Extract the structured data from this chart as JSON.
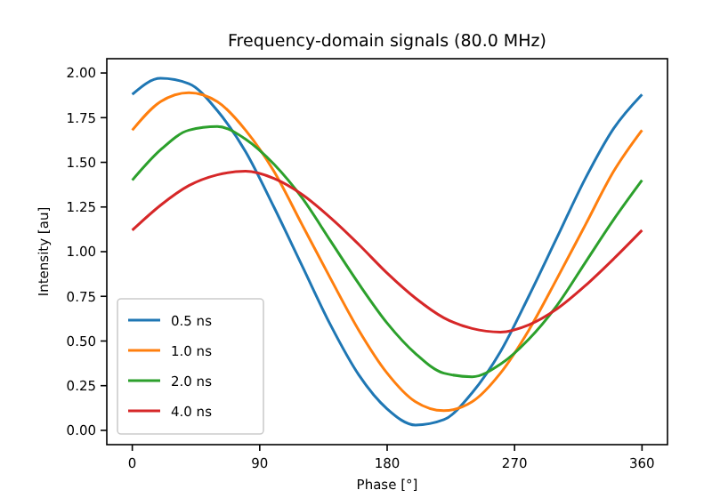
{
  "chart_data": {
    "type": "line",
    "title": "Frequency-domain signals (80.0 MHz)",
    "xlabel": "Phase [°]",
    "ylabel": "Intensity [au]",
    "x": [
      0,
      20,
      40,
      60,
      80,
      100,
      120,
      140,
      160,
      180,
      200,
      220,
      240,
      260,
      280,
      300,
      320,
      340,
      360
    ],
    "series": [
      {
        "name": "0.5 ns",
        "color": "#1f77b4",
        "values": [
          1.88,
          1.97,
          1.94,
          1.79,
          1.56,
          1.25,
          0.92,
          0.59,
          0.31,
          0.12,
          0.03,
          0.06,
          0.21,
          0.44,
          0.75,
          1.08,
          1.41,
          1.69,
          1.88
        ]
      },
      {
        "name": "1.0 ns",
        "color": "#ff7f0e",
        "values": [
          1.68,
          1.84,
          1.89,
          1.84,
          1.68,
          1.45,
          1.15,
          0.85,
          0.56,
          0.32,
          0.16,
          0.11,
          0.16,
          0.32,
          0.56,
          0.85,
          1.15,
          1.45,
          1.68
        ]
      },
      {
        "name": "2.0 ns",
        "color": "#2ca02c",
        "values": [
          1.4,
          1.57,
          1.68,
          1.7,
          1.63,
          1.49,
          1.3,
          1.06,
          0.82,
          0.6,
          0.43,
          0.32,
          0.3,
          0.37,
          0.51,
          0.7,
          0.94,
          1.18,
          1.4
        ]
      },
      {
        "name": "4.0 ns",
        "color": "#d62728",
        "values": [
          1.12,
          1.26,
          1.37,
          1.43,
          1.45,
          1.41,
          1.32,
          1.19,
          1.04,
          0.88,
          0.74,
          0.63,
          0.57,
          0.55,
          0.59,
          0.68,
          0.81,
          0.96,
          1.12
        ]
      }
    ],
    "xlim": [
      -18,
      378
    ],
    "xticks": [
      0,
      90,
      180,
      270,
      360
    ],
    "ylim": [
      -0.08,
      2.08
    ],
    "yticks": [
      {
        "value": 0,
        "label": "0.00"
      },
      {
        "value": 0.25,
        "label": "0.25"
      },
      {
        "value": 0.5,
        "label": "0.50"
      },
      {
        "value": 0.75,
        "label": "0.75"
      },
      {
        "value": 1,
        "label": "1.00"
      },
      {
        "value": 1.25,
        "label": "1.25"
      },
      {
        "value": 1.5,
        "label": "1.50"
      },
      {
        "value": 1.75,
        "label": "1.75"
      },
      {
        "value": 2,
        "label": "2.00"
      }
    ],
    "legend": "bottom left",
    "grid": false,
    "marker": "none",
    "line_style": "solid"
  }
}
